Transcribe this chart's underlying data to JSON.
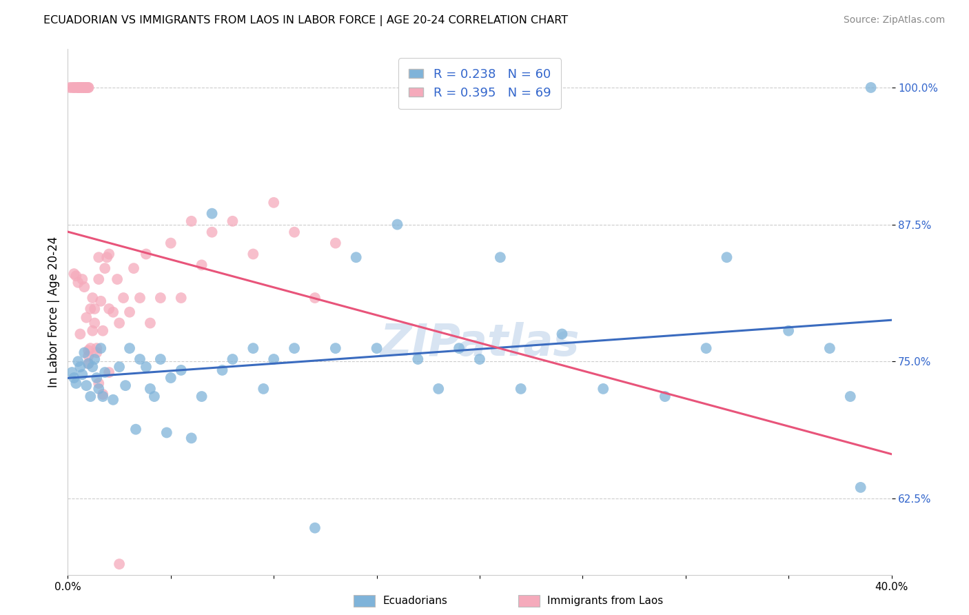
{
  "title": "ECUADORIAN VS IMMIGRANTS FROM LAOS IN LABOR FORCE | AGE 20-24 CORRELATION CHART",
  "source": "Source: ZipAtlas.com",
  "ylabel": "In Labor Force | Age 20-24",
  "x_min": 0.0,
  "x_max": 0.4,
  "y_min": 0.555,
  "y_max": 1.035,
  "x_ticks": [
    0.0,
    0.05,
    0.1,
    0.15,
    0.2,
    0.25,
    0.3,
    0.35,
    0.4
  ],
  "x_tick_labels": [
    "0.0%",
    "",
    "",
    "",
    "",
    "",
    "",
    "",
    "40.0%"
  ],
  "y_ticks": [
    0.625,
    0.75,
    0.875,
    1.0
  ],
  "y_tick_labels": [
    "62.5%",
    "75.0%",
    "87.5%",
    "100.0%"
  ],
  "legend_labels": [
    "Ecuadorians",
    "Immigrants from Laos"
  ],
  "blue_color": "#7fb3d9",
  "pink_color": "#f5aabb",
  "blue_line_color": "#3a6bbf",
  "pink_line_color": "#e8547a",
  "watermark": "ZIPatlas",
  "blue_scatter_x": [
    0.002,
    0.003,
    0.004,
    0.005,
    0.006,
    0.007,
    0.008,
    0.009,
    0.01,
    0.011,
    0.012,
    0.013,
    0.014,
    0.015,
    0.016,
    0.017,
    0.018,
    0.022,
    0.025,
    0.028,
    0.03,
    0.033,
    0.035,
    0.038,
    0.04,
    0.042,
    0.045,
    0.048,
    0.05,
    0.055,
    0.06,
    0.065,
    0.07,
    0.075,
    0.08,
    0.09,
    0.095,
    0.1,
    0.11,
    0.12,
    0.13,
    0.14,
    0.15,
    0.16,
    0.17,
    0.18,
    0.19,
    0.2,
    0.21,
    0.22,
    0.24,
    0.26,
    0.29,
    0.31,
    0.32,
    0.35,
    0.37,
    0.38,
    0.385,
    0.39
  ],
  "blue_scatter_y": [
    0.74,
    0.735,
    0.73,
    0.75,
    0.745,
    0.738,
    0.758,
    0.728,
    0.748,
    0.718,
    0.745,
    0.752,
    0.735,
    0.725,
    0.762,
    0.718,
    0.74,
    0.715,
    0.745,
    0.728,
    0.762,
    0.688,
    0.752,
    0.745,
    0.725,
    0.718,
    0.752,
    0.685,
    0.735,
    0.742,
    0.68,
    0.718,
    0.885,
    0.742,
    0.752,
    0.762,
    0.725,
    0.752,
    0.762,
    0.598,
    0.762,
    0.845,
    0.762,
    0.875,
    0.752,
    0.725,
    0.762,
    0.752,
    0.845,
    0.725,
    0.775,
    0.725,
    0.718,
    0.762,
    0.845,
    0.778,
    0.762,
    0.718,
    0.635,
    1.0
  ],
  "pink_scatter_x": [
    0.001,
    0.002,
    0.003,
    0.003,
    0.004,
    0.005,
    0.005,
    0.005,
    0.006,
    0.006,
    0.007,
    0.007,
    0.008,
    0.008,
    0.009,
    0.009,
    0.01,
    0.01,
    0.01,
    0.01,
    0.011,
    0.012,
    0.013,
    0.014,
    0.015,
    0.015,
    0.016,
    0.017,
    0.018,
    0.019,
    0.02,
    0.02,
    0.022,
    0.024,
    0.025,
    0.027,
    0.03,
    0.032,
    0.035,
    0.038,
    0.04,
    0.045,
    0.05,
    0.055,
    0.06,
    0.065,
    0.07,
    0.08,
    0.09,
    0.1,
    0.11,
    0.12,
    0.13,
    0.003,
    0.004,
    0.005,
    0.006,
    0.007,
    0.008,
    0.009,
    0.01,
    0.011,
    0.012,
    0.013,
    0.014,
    0.015,
    0.017,
    0.02,
    0.025
  ],
  "pink_scatter_y": [
    1.0,
    1.0,
    1.0,
    1.0,
    1.0,
    1.0,
    1.0,
    1.0,
    1.0,
    1.0,
    1.0,
    1.0,
    1.0,
    1.0,
    1.0,
    1.0,
    1.0,
    1.0,
    0.76,
    0.748,
    0.798,
    0.808,
    0.785,
    0.762,
    0.845,
    0.825,
    0.805,
    0.778,
    0.835,
    0.845,
    0.798,
    0.848,
    0.795,
    0.825,
    0.785,
    0.808,
    0.795,
    0.835,
    0.808,
    0.848,
    0.785,
    0.808,
    0.858,
    0.808,
    0.878,
    0.838,
    0.868,
    0.878,
    0.848,
    0.895,
    0.868,
    0.808,
    0.858,
    0.83,
    0.828,
    0.822,
    0.775,
    0.825,
    0.818,
    0.79,
    0.755,
    0.762,
    0.778,
    0.798,
    0.758,
    0.73,
    0.72,
    0.74,
    0.565
  ],
  "grid_color": "#cccccc",
  "bg_color": "#ffffff"
}
